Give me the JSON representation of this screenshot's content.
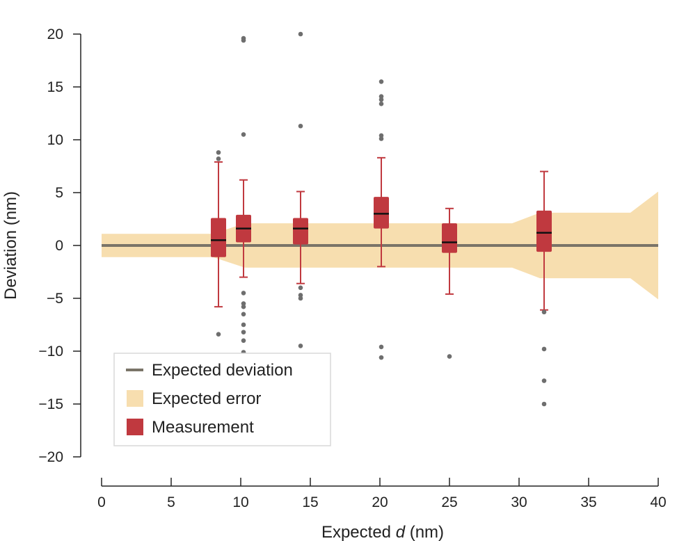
{
  "chart_data": {
    "type": "box",
    "xlabel": {
      "prefix": "Expected ",
      "italic": "d",
      "suffix": " (nm)"
    },
    "ylabel": "Deviation (nm)",
    "xlim": [
      0,
      40
    ],
    "ylim": [
      -20,
      20
    ],
    "xticks": [
      0,
      5,
      10,
      15,
      20,
      25,
      30,
      35,
      40
    ],
    "yticks": [
      20,
      15,
      10,
      5,
      0,
      -5,
      -10,
      -15,
      -20
    ],
    "ytick_labels": [
      "20",
      "15",
      "10",
      "5",
      "0",
      "−5",
      "−10",
      "−15",
      "−20"
    ],
    "grid": false,
    "legend_position": "bottom-left",
    "legend": [
      {
        "label": "Expected deviation",
        "kind": "line"
      },
      {
        "label": "Expected error",
        "kind": "band"
      },
      {
        "label": "Measurement",
        "kind": "box"
      }
    ],
    "colors": {
      "expected_deviation": "#7a7468",
      "expected_error": "#f7deaf",
      "measurement": "#c0393f",
      "median": "#111111",
      "outlier": "#6e6e6e"
    },
    "expected_deviation": {
      "x": [
        0,
        40
      ],
      "y": [
        0,
        0
      ]
    },
    "expected_error_band": {
      "x": [
        0,
        8,
        10.3,
        29.5,
        31.5,
        38,
        40
      ],
      "upper": [
        1.1,
        1.1,
        2.1,
        2.1,
        3.1,
        3.1,
        5.1
      ],
      "lower": [
        -1.1,
        -1.1,
        -2.1,
        -2.1,
        -3.1,
        -3.1,
        -5.1
      ]
    },
    "boxes": [
      {
        "x": 8.4,
        "whisker_low": -5.8,
        "q1": -1.1,
        "median": 0.5,
        "q3": 2.6,
        "whisker_high": 7.9,
        "outliers": [
          8.8,
          8.2,
          -8.4
        ]
      },
      {
        "x": 10.2,
        "whisker_low": -3.0,
        "q1": 0.3,
        "median": 1.6,
        "q3": 2.9,
        "whisker_high": 6.2,
        "outliers": [
          19.6,
          19.4,
          10.5,
          -4.5,
          -5.5,
          -5.8,
          -6.5,
          -7.5,
          -8.2,
          -9.0,
          -10.1,
          -10.2
        ]
      },
      {
        "x": 14.3,
        "whisker_low": -3.6,
        "q1": 0.1,
        "median": 1.6,
        "q3": 2.6,
        "whisker_high": 5.1,
        "outliers": [
          20.0,
          11.3,
          -4.0,
          -4.7,
          -5.0,
          -9.5
        ]
      },
      {
        "x": 20.1,
        "whisker_low": -2.0,
        "q1": 1.6,
        "median": 3.0,
        "q3": 4.6,
        "whisker_high": 8.3,
        "outliers": [
          15.5,
          14.1,
          13.8,
          13.4,
          10.4,
          10.1,
          -9.6,
          -10.6
        ]
      },
      {
        "x": 25.0,
        "whisker_low": -4.6,
        "q1": -0.7,
        "median": 0.3,
        "q3": 2.1,
        "whisker_high": 3.5,
        "outliers": [
          -10.5
        ]
      },
      {
        "x": 31.8,
        "whisker_low": -6.1,
        "q1": -0.6,
        "median": 1.2,
        "q3": 3.3,
        "whisker_high": 7.0,
        "outliers": [
          -6.3,
          -9.8,
          -12.8,
          -15.0
        ]
      }
    ]
  }
}
